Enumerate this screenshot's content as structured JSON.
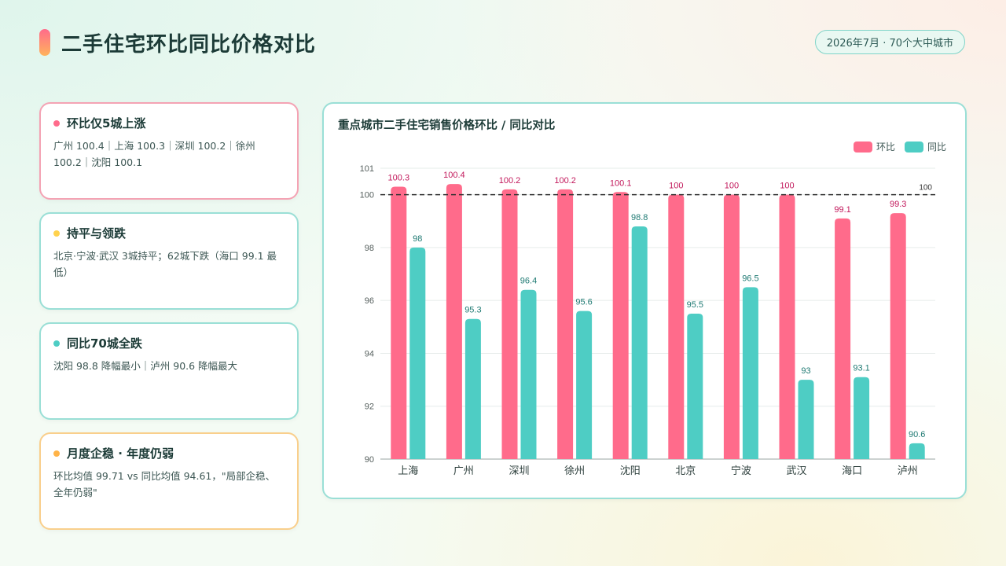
{
  "page": {
    "title": "二手住宅环比同比价格对比",
    "badge": "2026年7月 · 70个大中城市"
  },
  "cards": [
    {
      "title": "环比仅5城上涨",
      "text": "广州 100.4｜上海 100.3｜深圳 100.2｜徐州 100.2｜沈阳 100.1",
      "dot_color": "#ff6b8b",
      "border": "pink"
    },
    {
      "title": "持平与领跌",
      "text": "北京·宁波·武汉 3城持平；62城下跌（海口 99.1 最低）",
      "dot_color": "#ffd24d",
      "border": "teal"
    },
    {
      "title": "同比70城全跌",
      "text": "沈阳 98.8 降幅最小｜泸州 90.6 降幅最大",
      "dot_color": "#4ecdc4",
      "border": "teal"
    },
    {
      "title": "月度企稳 · 年度仍弱",
      "text": "环比均值 99.71 vs 同比均值 94.61，\"局部企稳、全年仍弱\"",
      "dot_color": "#ffb347",
      "border": "orange"
    }
  ],
  "chart_data": {
    "type": "bar",
    "title": "重点城市二手住宅销售价格环比 / 同比对比",
    "categories": [
      "上海",
      "广州",
      "深圳",
      "徐州",
      "沈阳",
      "北京",
      "宁波",
      "武汉",
      "海口",
      "泸州"
    ],
    "series": [
      {
        "name": "环比",
        "color": "#ff6b8b",
        "label_color": "#c2185b",
        "values": [
          100.3,
          100.4,
          100.2,
          100.2,
          100.1,
          100,
          100,
          100,
          99.1,
          99.3
        ]
      },
      {
        "name": "同比",
        "color": "#4ecdc4",
        "label_color": "#1f7a73",
        "values": [
          98,
          95.3,
          96.4,
          95.6,
          98.8,
          95.5,
          96.5,
          93,
          93.1,
          90.6
        ]
      }
    ],
    "ylim": [
      90,
      101
    ],
    "yticks": [
      90,
      92,
      94,
      96,
      98,
      100,
      101
    ],
    "reference_line": {
      "value": 100,
      "label": "100"
    },
    "legend_position": "top-right",
    "grid": true
  }
}
